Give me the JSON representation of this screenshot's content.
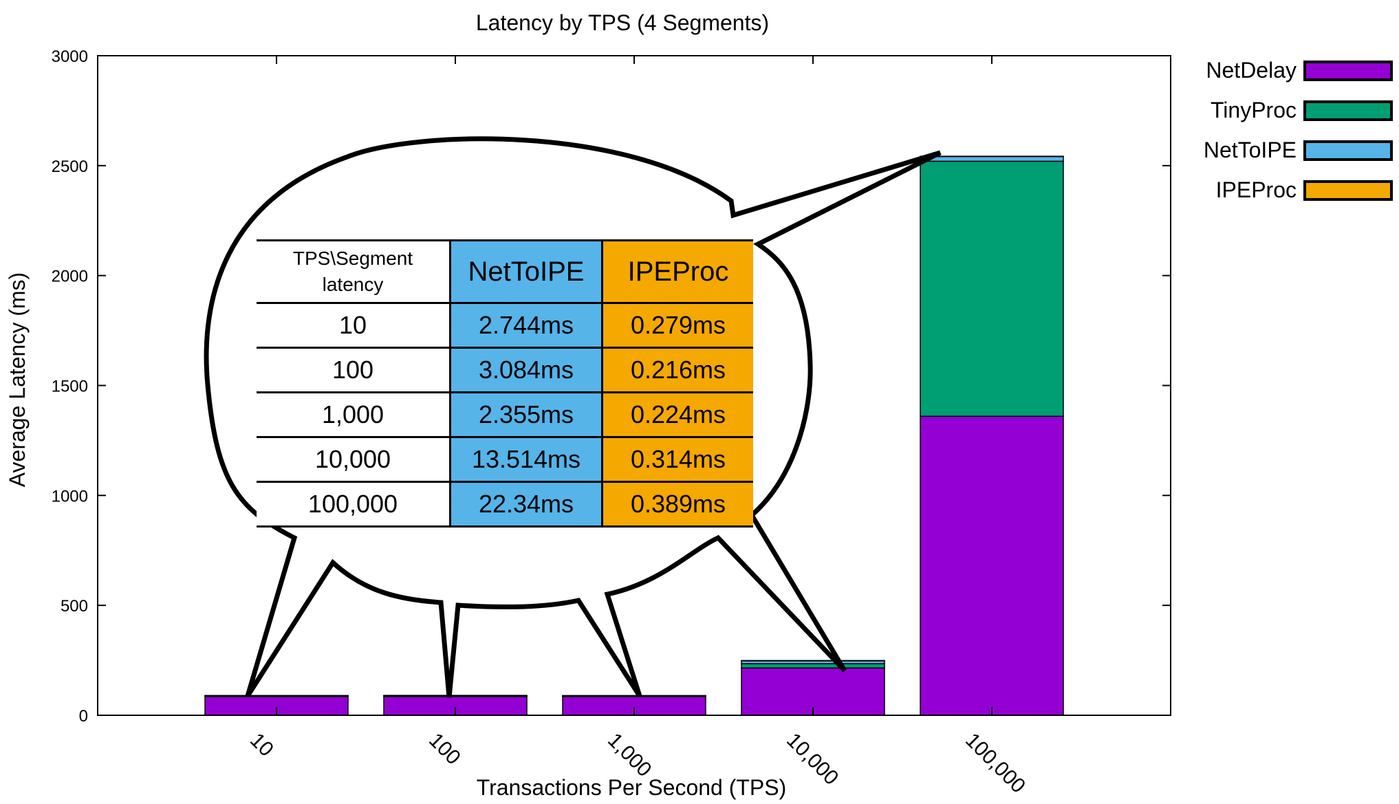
{
  "chart_data": {
    "type": "bar",
    "stacked": true,
    "title": "Latency by TPS (4 Segments)",
    "xlabel": "Transactions Per Second (TPS)",
    "ylabel": "Average Latency (ms)",
    "ylim": [
      0,
      3000
    ],
    "yticks": [
      "0",
      "500",
      "1000",
      "1500",
      "2000",
      "2500",
      "3000"
    ],
    "categories": [
      "10",
      "100",
      "1,000",
      "10,000",
      "100,000"
    ],
    "series": [
      {
        "name": "NetDelay",
        "color": "#9400d3",
        "values": [
          85,
          85,
          85,
          215,
          1360
        ]
      },
      {
        "name": "TinyProc",
        "color": "#009e73",
        "values": [
          2,
          2,
          2,
          20,
          1160
        ]
      },
      {
        "name": "NetToIPE",
        "color": "#56b4e9",
        "values": [
          2.744,
          3.084,
          2.355,
          13.514,
          22.34
        ]
      },
      {
        "name": "IPEProc",
        "color": "#f5a800",
        "values": [
          0.279,
          0.216,
          0.224,
          0.314,
          0.389
        ]
      }
    ],
    "legend": "right",
    "grid": false,
    "inset_table": {
      "header": {
        "col0_line1": "TPS\\Segment",
        "col0_line2": "latency",
        "col1": "NetToIPE",
        "col2": "IPEProc"
      },
      "rows": [
        {
          "tps": "10",
          "nettoipe": "2.744ms",
          "ipeproc": "0.279ms"
        },
        {
          "tps": "100",
          "nettoipe": "3.084ms",
          "ipeproc": "0.216ms"
        },
        {
          "tps": "1,000",
          "nettoipe": "2.355ms",
          "ipeproc": "0.224ms"
        },
        {
          "tps": "10,000",
          "nettoipe": "13.514ms",
          "ipeproc": "0.314ms"
        },
        {
          "tps": "100,000",
          "nettoipe": "22.34ms",
          "ipeproc": "0.389ms"
        }
      ]
    }
  }
}
